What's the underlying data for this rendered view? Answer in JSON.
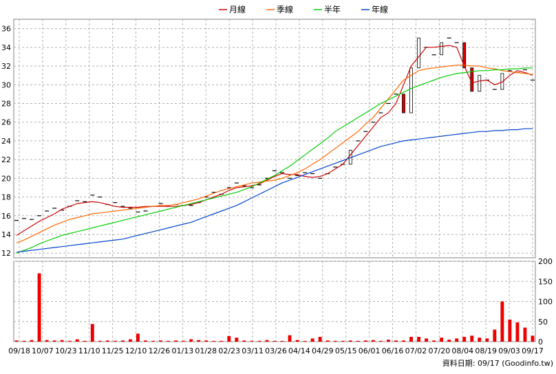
{
  "legend": [
    {
      "label": "月線",
      "color": "#cc0000"
    },
    {
      "label": "季線",
      "color": "#ff6600"
    },
    {
      "label": "半年",
      "color": "#00cc00"
    },
    {
      "label": "年線",
      "color": "#0044cc"
    }
  ],
  "footer": "資料日期: 09/17  (Goodinfo.tw)",
  "chart_data": {
    "type": "candlestick",
    "price_axis": {
      "ylim": [
        11.5,
        37
      ],
      "ticks": [
        12,
        14,
        16,
        18,
        20,
        22,
        24,
        26,
        28,
        30,
        32,
        34,
        36
      ]
    },
    "volume_axis": {
      "ylim": [
        0,
        200
      ],
      "ticks": [
        0,
        50,
        100,
        150,
        200
      ]
    },
    "x_tick_labels": [
      "09/18",
      "10/07",
      "10/23",
      "11/10",
      "11/25",
      "12/10",
      "12/26",
      "01/13",
      "01/28",
      "02/23",
      "03/11",
      "03/26",
      "04/14",
      "04/29",
      "05/15",
      "06/01",
      "06/16",
      "07/02",
      "07/20",
      "08/04",
      "08/19",
      "09/03",
      "09/17"
    ],
    "grid": true,
    "sample_points": 69,
    "close": [
      15.5,
      15.7,
      15.6,
      16.0,
      16.5,
      16.8,
      16.6,
      17.0,
      17.6,
      17.5,
      18.2,
      18.0,
      17.2,
      17.4,
      17.0,
      16.8,
      16.4,
      16.5,
      17.0,
      17.3,
      17.0,
      17.2,
      17.1,
      17.1,
      17.4,
      18.0,
      18.5,
      18.3,
      19.0,
      19.5,
      19.2,
      19.0,
      19.3,
      20.0,
      20.8,
      20.6,
      20.0,
      20.3,
      20.6,
      20.5,
      20.0,
      20.5,
      21.2,
      21.5,
      23.0,
      24.0,
      25.0,
      26.0,
      27.0,
      28.0,
      29.0,
      27.0,
      31.8,
      35.0,
      34.0,
      33.2,
      34.5,
      35.0,
      34.5,
      31.8,
      29.3,
      31.0,
      30.5,
      29.5,
      31.2,
      31.5,
      31.3,
      31.6,
      30.5
    ],
    "ma": [
      {
        "name": "月線",
        "values": [
          13.9,
          14.4,
          14.9,
          15.4,
          15.8,
          16.2,
          16.7,
          17.0,
          17.3,
          17.4,
          17.5,
          17.4,
          17.2,
          17.0,
          16.9,
          16.9,
          16.9,
          17.0,
          17.0,
          17.0,
          17.0,
          17.0,
          17.1,
          17.2,
          17.4,
          17.7,
          18.0,
          18.3,
          18.7,
          19.0,
          19.1,
          19.2,
          19.4,
          19.8,
          20.2,
          20.5,
          20.4,
          20.4,
          20.2,
          20.1,
          20.2,
          20.5,
          21.0,
          21.5,
          22.5,
          23.5,
          24.5,
          25.5,
          26.5,
          27.0,
          28.0,
          30.0,
          32.0,
          33.0,
          34.0,
          34.0,
          34.1,
          34.2,
          34.0,
          32.0,
          30.2,
          30.4,
          30.5,
          30.0,
          30.3,
          31.0,
          31.5,
          31.3,
          31.0
        ]
      },
      {
        "name": "季線",
        "values": [
          13.1,
          13.4,
          13.8,
          14.2,
          14.6,
          15.0,
          15.3,
          15.6,
          15.8,
          16.0,
          16.2,
          16.3,
          16.4,
          16.5,
          16.6,
          16.7,
          16.8,
          16.9,
          17.0,
          17.1,
          17.1,
          17.2,
          17.4,
          17.6,
          17.8,
          18.1,
          18.4,
          18.7,
          18.9,
          19.1,
          19.3,
          19.5,
          19.6,
          19.7,
          19.8,
          20.0,
          20.3,
          20.6,
          21.0,
          21.5,
          22.0,
          22.6,
          23.2,
          23.8,
          24.4,
          25.0,
          25.8,
          26.5,
          27.5,
          28.5,
          29.5,
          30.5,
          31.0,
          31.5,
          31.7,
          31.8,
          31.9,
          32.0,
          32.1,
          32.1,
          32.0,
          32.0,
          31.8,
          31.7,
          31.5,
          31.4,
          31.3,
          31.2,
          31.1
        ]
      },
      {
        "name": "半年",
        "values": [
          12.0,
          12.3,
          12.6,
          13.0,
          13.3,
          13.6,
          13.9,
          14.1,
          14.3,
          14.5,
          14.7,
          14.9,
          15.1,
          15.3,
          15.5,
          15.7,
          15.9,
          16.1,
          16.3,
          16.5,
          16.7,
          16.9,
          17.1,
          17.3,
          17.5,
          17.7,
          17.9,
          18.1,
          18.3,
          18.5,
          18.8,
          19.1,
          19.5,
          19.9,
          20.3,
          20.8,
          21.3,
          21.9,
          22.5,
          23.1,
          23.7,
          24.3,
          25.0,
          25.5,
          26.0,
          26.5,
          27.0,
          27.5,
          28.0,
          28.4,
          28.8,
          29.2,
          29.6,
          29.9,
          30.2,
          30.5,
          30.8,
          31.0,
          31.2,
          31.3,
          31.4,
          31.5,
          31.5,
          31.6,
          31.6,
          31.7,
          31.7,
          31.8,
          31.8
        ]
      },
      {
        "name": "年線",
        "values": [
          12.1,
          12.2,
          12.3,
          12.4,
          12.5,
          12.6,
          12.7,
          12.8,
          12.9,
          13.0,
          13.1,
          13.2,
          13.3,
          13.4,
          13.5,
          13.7,
          13.9,
          14.1,
          14.3,
          14.5,
          14.7,
          14.9,
          15.1,
          15.3,
          15.6,
          15.9,
          16.2,
          16.5,
          16.8,
          17.1,
          17.5,
          17.9,
          18.3,
          18.7,
          19.1,
          19.5,
          19.8,
          20.1,
          20.4,
          20.7,
          21.0,
          21.3,
          21.6,
          21.9,
          22.2,
          22.5,
          22.8,
          23.1,
          23.4,
          23.6,
          23.8,
          24.0,
          24.1,
          24.2,
          24.3,
          24.4,
          24.5,
          24.6,
          24.7,
          24.8,
          24.9,
          25.0,
          25.0,
          25.1,
          25.1,
          25.2,
          25.2,
          25.3,
          25.3
        ]
      }
    ],
    "volume": [
      3,
      2,
      4,
      170,
      4,
      3,
      4,
      2,
      6,
      2,
      44,
      2,
      3,
      2,
      3,
      6,
      20,
      3,
      2,
      3,
      2,
      3,
      2,
      6,
      4,
      3,
      2,
      2,
      14,
      10,
      3,
      2,
      2,
      4,
      2,
      2,
      16,
      4,
      2,
      8,
      12,
      3,
      2,
      2,
      3,
      2,
      3,
      4,
      2,
      5,
      3,
      3,
      12,
      12,
      8,
      3,
      10,
      5,
      8,
      12,
      15,
      10,
      8,
      30,
      100,
      55,
      48,
      35,
      15
    ]
  }
}
